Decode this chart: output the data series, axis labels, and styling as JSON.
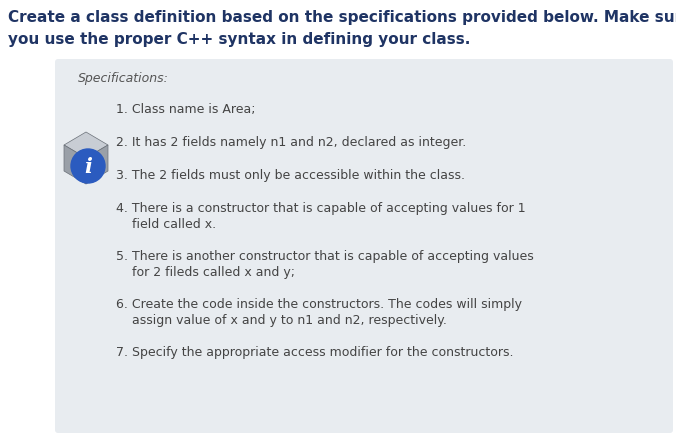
{
  "title_line1": "Create a class definition based on the specifications provided below. Make sure",
  "title_line2": "you use the proper C++ syntax in defining your class.",
  "specs_label": "Specifications:",
  "items": [
    [
      "1. Class name is Area;"
    ],
    [
      "2. It has 2 fields namely n1 and n2, declared as integer."
    ],
    [
      "3. The 2 fields must only be accessible within the class."
    ],
    [
      "4. There is a constructor that is capable of accepting values for 1",
      "    field called x."
    ],
    [
      "5. There is another constructor that is capable of accepting values",
      "    for 2 fileds called x and y;"
    ],
    [
      "6. Create the code inside the constructors. The codes will simply",
      "    assign value of x and y to n1 and n2, respectively."
    ],
    [
      "7. Specify the appropriate access modifier for the constructors."
    ]
  ],
  "bg_color": "#ffffff",
  "box_color": "#e8ecf0",
  "title_color": "#1f3464",
  "specs_color": "#555555",
  "item_color": "#444444",
  "icon_gray_light": "#c8cdd4",
  "icon_gray_mid": "#9aa0a8",
  "icon_gray_dark": "#6a7078",
  "icon_blue": "#2b5bbf",
  "icon_blue_dark": "#1a3a8f"
}
